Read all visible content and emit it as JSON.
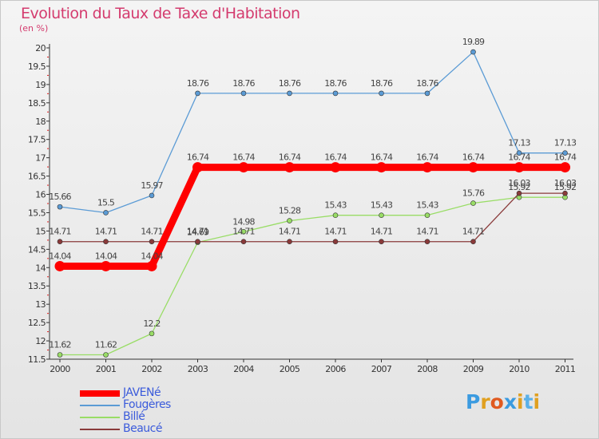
{
  "header": {
    "title": "Evolution du Taux de Taxe d'Habitation",
    "unit": "(en %)"
  },
  "logo": {
    "text": "Proxiti",
    "colors": [
      "#3b9be0",
      "#e0a020",
      "#e05a20",
      "#3b9be0",
      "#e0a020",
      "#5ab0e8",
      "#e0a020"
    ]
  },
  "chart_data": {
    "type": "line",
    "categories": [
      "2000",
      "2001",
      "2002",
      "2003",
      "2004",
      "2005",
      "2006",
      "2007",
      "2008",
      "2009",
      "2010",
      "2011"
    ],
    "ylim": [
      11.5,
      20
    ],
    "yticks": [
      "11.5",
      "12",
      "12.5",
      "13",
      "13.5",
      "14",
      "14.5",
      "15",
      "15.5",
      "16",
      "16.5",
      "17",
      "17.5",
      "18",
      "18.5",
      "19",
      "19.5",
      "20"
    ],
    "grid": false,
    "legend_position": "bottom-left",
    "series": [
      {
        "name": "JAVENé",
        "color": "#ff0000",
        "values": [
          14.04,
          14.04,
          14.04,
          16.74,
          16.74,
          16.74,
          16.74,
          16.74,
          16.74,
          16.74,
          16.74,
          16.74
        ],
        "labels": [
          "14.04",
          "14.04",
          "14.04",
          "16.74",
          "16.74",
          "16.74",
          "16.74",
          "16.74",
          "16.74",
          "16.74",
          "16.74",
          "16.74"
        ]
      },
      {
        "name": "Fougères",
        "color": "#5b9bd5",
        "values": [
          15.66,
          15.5,
          15.97,
          18.76,
          18.76,
          18.76,
          18.76,
          18.76,
          18.76,
          19.89,
          17.13,
          17.13
        ],
        "labels": [
          "15.66",
          "15.5",
          "15.97",
          "18.76",
          "18.76",
          "18.76",
          "18.76",
          "18.76",
          "18.76",
          "19.89",
          "17.13",
          "17.13"
        ]
      },
      {
        "name": "Billé",
        "color": "#99dd66",
        "values": [
          11.62,
          11.62,
          12.2,
          14.69,
          14.98,
          15.28,
          15.43,
          15.43,
          15.43,
          15.76,
          15.92,
          15.92
        ],
        "labels": [
          "11.62",
          "11.62",
          "12.2",
          "14.69",
          "14.98",
          "15.28",
          "15.43",
          "15.43",
          "15.43",
          "15.76",
          "15.92",
          "15.92"
        ]
      },
      {
        "name": "Beaucé",
        "color": "#8a3a3a",
        "values": [
          14.71,
          14.71,
          14.71,
          14.71,
          14.71,
          14.71,
          14.71,
          14.71,
          14.71,
          14.71,
          16.03,
          16.03
        ],
        "labels": [
          "14.71",
          "14.71",
          "14.71",
          "14.71",
          "14.71",
          "14.71",
          "14.71",
          "14.71",
          "14.71",
          "14.71",
          "16.03",
          "16.03"
        ]
      }
    ]
  }
}
